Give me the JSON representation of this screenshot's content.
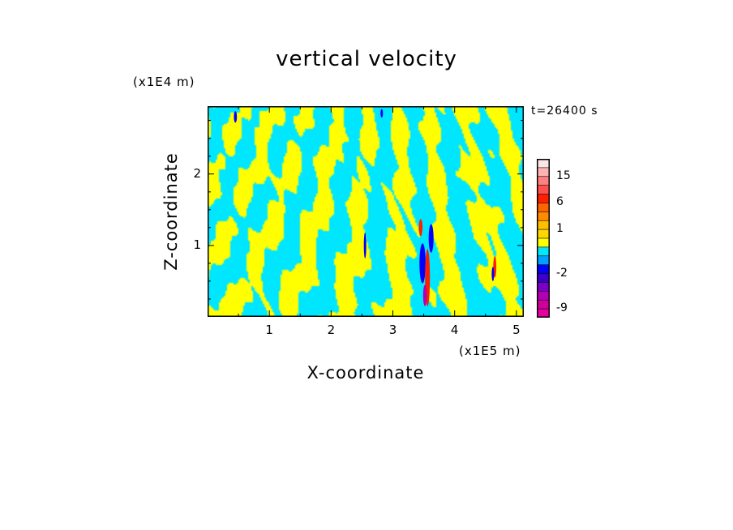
{
  "chart_data": {
    "type": "heatmap",
    "title": "vertical velocity",
    "xlabel": "X-coordinate",
    "ylabel": "Z-coordinate",
    "x_unit": "(x1E5 m)",
    "y_unit": "(x1E4 m)",
    "time_label": "t=26400 s",
    "xlim": [
      0,
      5.12
    ],
    "ylim": [
      0,
      2.95
    ],
    "x_ticks": [
      "1",
      "2",
      "3",
      "4",
      "5"
    ],
    "y_ticks": [
      "1",
      "2"
    ],
    "x_tick_values": [
      1,
      2,
      3,
      4,
      5
    ],
    "y_tick_values": [
      1,
      2
    ],
    "colorbar": {
      "tick_labels": [
        "15",
        "6",
        "1",
        "-2",
        "-9"
      ],
      "tick_values": [
        15,
        6,
        1,
        -2,
        -9
      ],
      "levels": [
        {
          "min": -12,
          "max": -9,
          "color": "#e600a0"
        },
        {
          "min": -9,
          "max": -6,
          "color": "#d0009a"
        },
        {
          "min": -6,
          "max": -4,
          "color": "#b400b4"
        },
        {
          "min": -4,
          "max": -3,
          "color": "#7a00c8"
        },
        {
          "min": -3,
          "max": -2,
          "color": "#3a00c8"
        },
        {
          "min": -2,
          "max": -1,
          "color": "#0000ff"
        },
        {
          "min": -1,
          "max": -0.5,
          "color": "#00a0ff"
        },
        {
          "min": -0.5,
          "max": 0,
          "color": "#00e6ff"
        },
        {
          "min": 0,
          "max": 0.5,
          "color": "#ffff00"
        },
        {
          "min": 0.5,
          "max": 1,
          "color": "#ffd700"
        },
        {
          "min": 1,
          "max": 2,
          "color": "#ffbf00"
        },
        {
          "min": 2,
          "max": 4,
          "color": "#ff8c00"
        },
        {
          "min": 4,
          "max": 6,
          "color": "#ff6400"
        },
        {
          "min": 6,
          "max": 9,
          "color": "#ff1e00"
        },
        {
          "min": 9,
          "max": 12,
          "color": "#ff5050"
        },
        {
          "min": 12,
          "max": 15,
          "color": "#ff8080"
        },
        {
          "min": 15,
          "max": 20,
          "color": "#ffb4b4"
        },
        {
          "min": 20,
          "max": 30,
          "color": "#ffe6e6"
        }
      ]
    },
    "field_colors": {
      "positive": "#ffff00",
      "negative": "#00e6ff",
      "strong_negative": "#0000ff",
      "strong_positive": "#ff1e00",
      "extreme_negative": "#b400b4"
    }
  }
}
